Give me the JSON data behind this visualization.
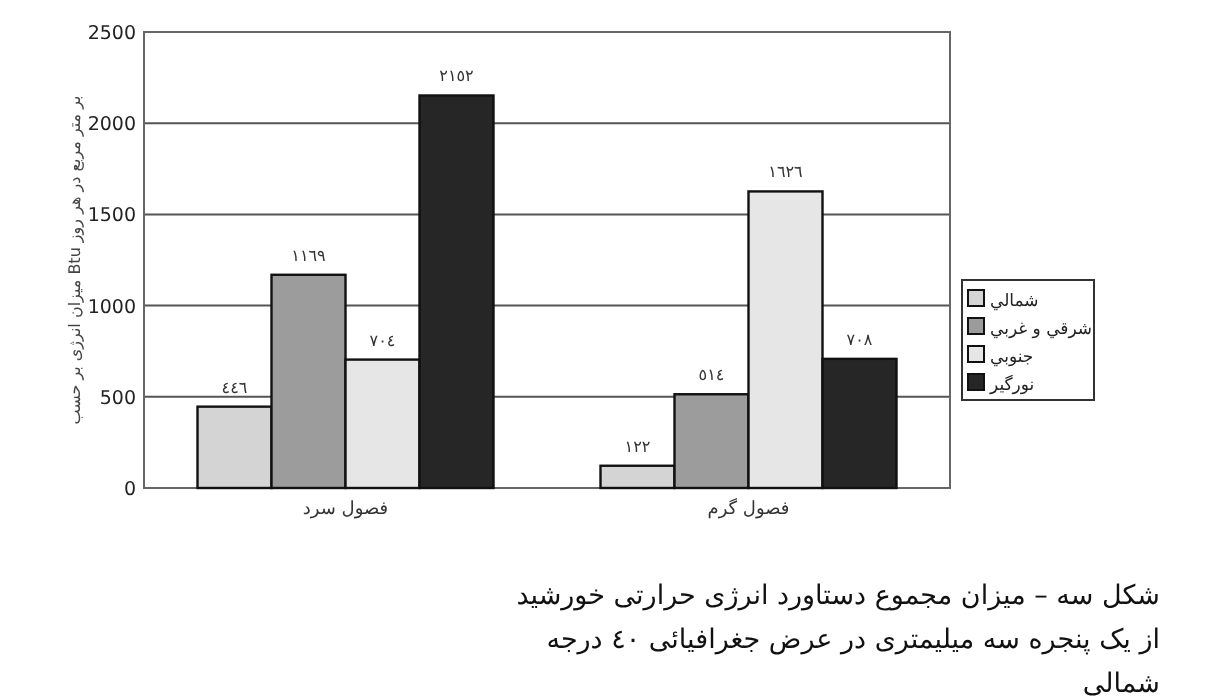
{
  "chart_data": {
    "type": "bar",
    "ylabel": "میزان انرژی بر حسب Btu بر متر مربع در هر روز",
    "categories": [
      "فصول سرد",
      "فصول گرم"
    ],
    "series": [
      {
        "name": "شمالي",
        "color": "#d4d4d4",
        "values": [
          446,
          122
        ],
        "value_labels": [
          "٤٤٦",
          "١٢٢"
        ]
      },
      {
        "name": "شرقي و غربي",
        "color": "#9c9c9c",
        "values": [
          1169,
          514
        ],
        "value_labels": [
          "١١٦٩",
          "٥١٤"
        ]
      },
      {
        "name": "جنوبي",
        "color": "#e6e6e6",
        "values": [
          704,
          1626
        ],
        "value_labels": [
          "٧٠٤",
          "١٦٢٦"
        ]
      },
      {
        "name": "نورگير",
        "color": "#262626",
        "values": [
          2152,
          708
        ],
        "value_labels": [
          "٢١٥٢",
          "٧٠٨"
        ]
      }
    ],
    "ylim": [
      0,
      2500
    ],
    "yticks": [
      0,
      500,
      1000,
      1500,
      2000,
      2500
    ],
    "grid": "y",
    "legend": "right",
    "annotations": [
      "شکل سه – میزان مجموع دستاورد انرژی حرارتی خورشید از یک پنجره سه میلیمتری در عرض جغرافیائی ٤٠ درجه شمالی"
    ]
  }
}
